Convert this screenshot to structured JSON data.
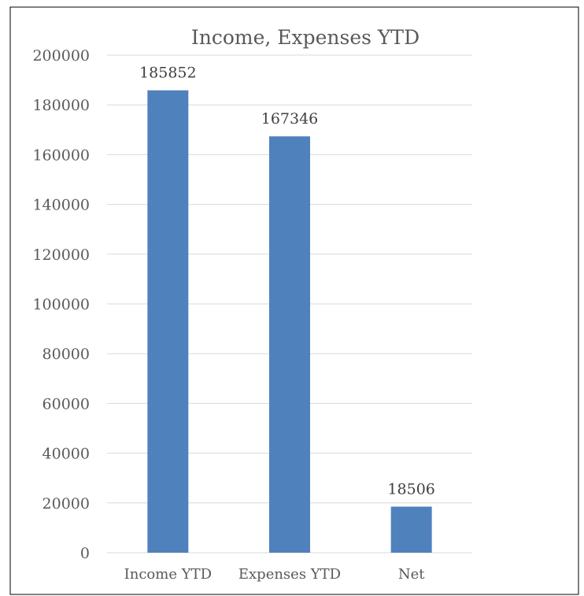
{
  "chart_data": {
    "type": "bar",
    "title": "Income, Expenses YTD",
    "categories": [
      "Income YTD",
      "Expenses YTD",
      "Net"
    ],
    "values": [
      185852,
      167346,
      18506
    ],
    "data_labels": [
      "185852",
      "167346",
      "18506"
    ],
    "y_ticks": [
      "0",
      "20000",
      "40000",
      "60000",
      "80000",
      "100000",
      "120000",
      "140000",
      "160000",
      "180000",
      "200000"
    ],
    "ylim": [
      0,
      200000
    ],
    "xlabel": "",
    "ylabel": "",
    "grid": true,
    "legend": "none",
    "bar_color": "#4F81BD",
    "gridline_color": "#D9D9D9",
    "border_color": "#000000"
  }
}
